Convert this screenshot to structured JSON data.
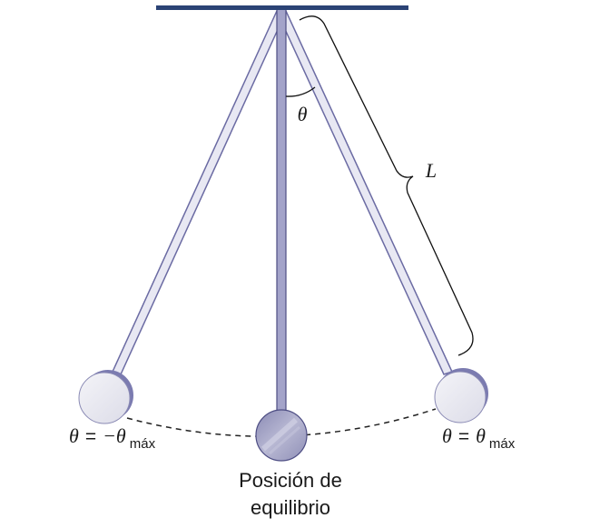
{
  "diagram": {
    "type": "pendulum",
    "colors": {
      "support": "#2b4375",
      "rod_fill": "#e8e8f3",
      "rod_stroke": "#6b6ba3",
      "center_rod_fill": "#a3a3c9",
      "bob_fill": "#ececf3",
      "bob_shadow": "#7b7bb0",
      "center_bob_fill": "#a9a9c6",
      "text": "#1a1a1a"
    },
    "labels": {
      "angle": "θ",
      "length": "L",
      "left_position": {
        "theta": "θ",
        "equals": "=",
        "minus_theta": "−θ",
        "subscript": "máx"
      },
      "right_position": {
        "theta": "θ",
        "equals": "=",
        "theta_max": "θ",
        "subscript": "máx"
      },
      "equilibrium_line1": "Posición de",
      "equilibrium_line2": "equilibrio"
    }
  }
}
